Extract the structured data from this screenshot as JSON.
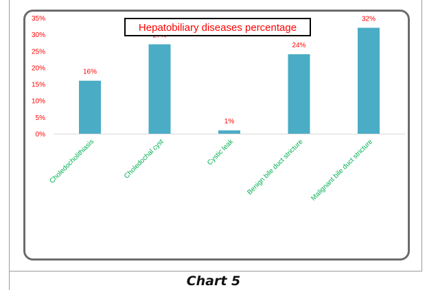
{
  "caption": "Chart 5",
  "colors": {
    "bar": "#4bacc6",
    "axis_text": "#ff0000",
    "category_text": "#00b050",
    "title_text": "#ff0000",
    "frame": "#6b6b6b"
  },
  "chart_data": {
    "type": "bar",
    "title": "Hepatobiliary diseases percentage",
    "categories": [
      "Choledocholithiasis",
      "Choledochal cyst",
      "Cystic leak",
      "Benign bile duct stricture",
      "Malignant bile duct stricture"
    ],
    "values": [
      16,
      27,
      1,
      24,
      32
    ],
    "data_labels": [
      "16%",
      "27%",
      "1%",
      "24%",
      "32%"
    ],
    "ylim": [
      0,
      35
    ],
    "yticks": [
      "0%",
      "5%",
      "10%",
      "15%",
      "20%",
      "25%",
      "30%",
      "35%"
    ],
    "xlabel": "",
    "ylabel": "",
    "grid": false,
    "legend": "none"
  }
}
